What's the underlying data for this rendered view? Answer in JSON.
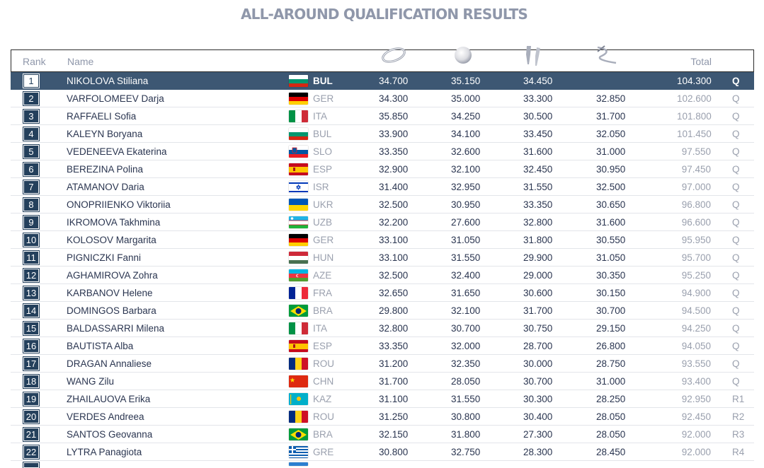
{
  "page": {
    "title": "ALL-AROUND QUALIFICATION RESULTS"
  },
  "headers": {
    "rank": "Rank",
    "name": "Name",
    "total": "Total"
  },
  "apparatus_icons": [
    "hoop-icon",
    "ball-icon",
    "clubs-icon",
    "ribbon-icon"
  ],
  "colors": {
    "highlight_row": "#3d5773",
    "rank_box": "#24405c",
    "title": "#8f97aa"
  },
  "rows": [
    {
      "rank": "1",
      "name": "NIKOLOVA Stiliana",
      "country": "BUL",
      "s1": "34.700",
      "s2": "35.150",
      "s3": "34.450",
      "s4": "",
      "total": "104.300",
      "q": "Q"
    },
    {
      "rank": "2",
      "name": "VARFOLOMEEV Darja",
      "country": "GER",
      "s1": "34.300",
      "s2": "35.000",
      "s3": "33.300",
      "s4": "32.850",
      "total": "102.600",
      "q": "Q"
    },
    {
      "rank": "3",
      "name": "RAFFAELI Sofia",
      "country": "ITA",
      "s1": "35.850",
      "s2": "34.250",
      "s3": "30.500",
      "s4": "31.700",
      "total": "101.800",
      "q": "Q"
    },
    {
      "rank": "4",
      "name": "KALEYN Boryana",
      "country": "BUL",
      "s1": "33.900",
      "s2": "34.100",
      "s3": "33.450",
      "s4": "32.050",
      "total": "101.450",
      "q": "Q"
    },
    {
      "rank": "5",
      "name": "VEDENEEVA Ekaterina",
      "country": "SLO",
      "s1": "33.350",
      "s2": "32.600",
      "s3": "31.600",
      "s4": "31.000",
      "total": "97.550",
      "q": "Q"
    },
    {
      "rank": "6",
      "name": "BEREZINA Polina",
      "country": "ESP",
      "s1": "32.900",
      "s2": "32.100",
      "s3": "32.450",
      "s4": "30.950",
      "total": "97.450",
      "q": "Q"
    },
    {
      "rank": "7",
      "name": "ATAMANOV Daria",
      "country": "ISR",
      "s1": "31.400",
      "s2": "32.950",
      "s3": "31.550",
      "s4": "32.500",
      "total": "97.000",
      "q": "Q"
    },
    {
      "rank": "8",
      "name": "ONOPRIIENKO Viktoriia",
      "country": "UKR",
      "s1": "32.500",
      "s2": "30.950",
      "s3": "33.350",
      "s4": "30.650",
      "total": "96.800",
      "q": "Q"
    },
    {
      "rank": "9",
      "name": "IKROMOVA Takhmina",
      "country": "UZB",
      "s1": "32.200",
      "s2": "27.600",
      "s3": "32.800",
      "s4": "31.600",
      "total": "96.600",
      "q": "Q"
    },
    {
      "rank": "10",
      "name": "KOLOSOV Margarita",
      "country": "GER",
      "s1": "33.100",
      "s2": "31.050",
      "s3": "31.800",
      "s4": "30.550",
      "total": "95.950",
      "q": "Q"
    },
    {
      "rank": "11",
      "name": "PIGNICZKI Fanni",
      "country": "HUN",
      "s1": "33.100",
      "s2": "31.550",
      "s3": "29.900",
      "s4": "31.050",
      "total": "95.700",
      "q": "Q"
    },
    {
      "rank": "12",
      "name": "AGHAMIROVA Zohra",
      "country": "AZE",
      "s1": "32.500",
      "s2": "32.400",
      "s3": "29.000",
      "s4": "30.350",
      "total": "95.250",
      "q": "Q"
    },
    {
      "rank": "13",
      "name": "KARBANOV Helene",
      "country": "FRA",
      "s1": "32.650",
      "s2": "31.650",
      "s3": "30.600",
      "s4": "30.150",
      "total": "94.900",
      "q": "Q"
    },
    {
      "rank": "14",
      "name": "DOMINGOS Barbara",
      "country": "BRA",
      "s1": "29.800",
      "s2": "32.100",
      "s3": "31.700",
      "s4": "30.700",
      "total": "94.500",
      "q": "Q"
    },
    {
      "rank": "15",
      "name": "BALDASSARRI Milena",
      "country": "ITA",
      "s1": "32.800",
      "s2": "30.700",
      "s3": "30.750",
      "s4": "29.150",
      "total": "94.250",
      "q": "Q"
    },
    {
      "rank": "16",
      "name": "BAUTISTA Alba",
      "country": "ESP",
      "s1": "33.350",
      "s2": "32.000",
      "s3": "28.700",
      "s4": "26.800",
      "total": "94.050",
      "q": "Q"
    },
    {
      "rank": "17",
      "name": "DRAGAN Annaliese",
      "country": "ROU",
      "s1": "31.200",
      "s2": "32.350",
      "s3": "30.000",
      "s4": "28.750",
      "total": "93.550",
      "q": "Q"
    },
    {
      "rank": "18",
      "name": "WANG Zilu",
      "country": "CHN",
      "s1": "31.700",
      "s2": "28.050",
      "s3": "30.700",
      "s4": "31.000",
      "total": "93.400",
      "q": "Q"
    },
    {
      "rank": "19",
      "name": "ZHAILAUOVA Erika",
      "country": "KAZ",
      "s1": "31.100",
      "s2": "31.550",
      "s3": "30.300",
      "s4": "28.250",
      "total": "92.950",
      "q": "R1"
    },
    {
      "rank": "20",
      "name": "VERDES Andreea",
      "country": "ROU",
      "s1": "31.250",
      "s2": "30.800",
      "s3": "30.400",
      "s4": "28.050",
      "total": "92.450",
      "q": "R2"
    },
    {
      "rank": "21",
      "name": "SANTOS Geovanna",
      "country": "BRA",
      "s1": "32.150",
      "s2": "31.800",
      "s3": "27.300",
      "s4": "28.050",
      "total": "92.000",
      "q": "R3"
    },
    {
      "rank": "22",
      "name": "LYTRA Panagiota",
      "country": "GRE",
      "s1": "30.800",
      "s2": "32.750",
      "s3": "28.300",
      "s4": "28.450",
      "total": "92.000",
      "q": "R4"
    }
  ]
}
